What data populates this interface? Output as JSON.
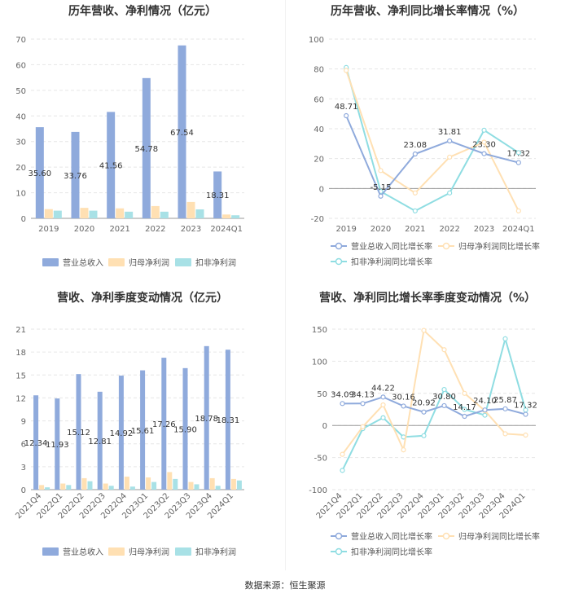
{
  "source": "数据来源：恒生聚源",
  "colors": {
    "revenue": "#8faadc",
    "net_profit": "#ffe0b3",
    "deducted_profit": "#a8e1e6",
    "rev_line": "#8faadc",
    "np_line": "#ffe0b3",
    "dp_line": "#8fdde2",
    "axis_text": "#666666",
    "grid": "#e6e6e6"
  },
  "chart_data": [
    {
      "type": "bar",
      "title": "历年营收、净利情况（亿元）",
      "categories": [
        "2019",
        "2020",
        "2021",
        "2022",
        "2023",
        "2024Q1"
      ],
      "ylim": [
        0,
        70
      ],
      "yticks": [
        0,
        10,
        20,
        30,
        40,
        50,
        60,
        70
      ],
      "series": [
        {
          "name": "营业总收入",
          "values": [
            35.6,
            33.76,
            41.56,
            54.78,
            67.54,
            18.31
          ],
          "labels": [
            "35.60",
            "33.76",
            "41.56",
            "54.78",
            "67.54",
            "18.31"
          ]
        },
        {
          "name": "归母净利润",
          "values": [
            3.6,
            4.1,
            3.9,
            4.8,
            6.4,
            1.5
          ]
        },
        {
          "name": "扣非净利润",
          "values": [
            3.0,
            3.0,
            2.6,
            2.6,
            3.5,
            1.2
          ]
        }
      ],
      "legend": "bottom"
    },
    {
      "type": "line",
      "title": "历年营收、净利同比增长率情况（%）",
      "categories": [
        "2019",
        "2020",
        "2021",
        "2022",
        "2023",
        "2024Q1"
      ],
      "ylim": [
        -20,
        100
      ],
      "yticks": [
        -20,
        0,
        20,
        40,
        60,
        80,
        100
      ],
      "series": [
        {
          "name": "营业总收入同比增长率",
          "values": [
            48.71,
            -5.15,
            23.08,
            31.81,
            23.3,
            17.32
          ],
          "labels": [
            "48.71",
            "-5.15",
            "23.08",
            "31.81",
            "23.30",
            "17.32"
          ]
        },
        {
          "name": "归母净利润同比增长率",
          "values": [
            79,
            12,
            -3,
            21,
            31,
            -15
          ]
        },
        {
          "name": "扣非净利润同比增长率",
          "values": [
            81,
            -2,
            -15,
            -3,
            39,
            24
          ]
        }
      ],
      "legend": "bottom"
    },
    {
      "type": "bar",
      "title": "营收、净利季度变动情况（亿元）",
      "categories": [
        "2021Q4",
        "2022Q1",
        "2022Q2",
        "2022Q3",
        "2022Q4",
        "2023Q1",
        "2023Q2",
        "2023Q3",
        "2023Q4",
        "2024Q1"
      ],
      "ylim": [
        0,
        21
      ],
      "yticks": [
        0,
        3,
        6,
        9,
        12,
        15,
        18,
        21
      ],
      "series": [
        {
          "name": "营业总收入",
          "values": [
            12.34,
            11.93,
            15.12,
            12.81,
            14.92,
            15.61,
            17.26,
            15.9,
            18.78,
            18.31
          ],
          "labels": [
            "12.34",
            "11.93",
            "15.12",
            "12.81",
            "14.92",
            "15.61",
            "17.26",
            "15.90",
            "18.78",
            "18.31"
          ]
        },
        {
          "name": "归母净利润",
          "values": [
            0.6,
            0.8,
            1.5,
            0.8,
            1.7,
            1.6,
            2.3,
            1.0,
            1.5,
            1.4
          ]
        },
        {
          "name": "扣非净利润",
          "values": [
            0.3,
            0.6,
            1.1,
            0.5,
            0.4,
            1.0,
            1.4,
            0.7,
            0.5,
            1.2
          ]
        }
      ],
      "legend": "bottom"
    },
    {
      "type": "line",
      "title": "营收、净利同比增长率季度变动情况（%）",
      "categories": [
        "2021Q4",
        "2022Q1",
        "2022Q2",
        "2022Q3",
        "2022Q4",
        "2023Q1",
        "2023Q2",
        "2023Q3",
        "2023Q4",
        "2024Q1"
      ],
      "ylim": [
        -100,
        150
      ],
      "yticks": [
        -100,
        -50,
        0,
        50,
        100,
        150
      ],
      "series": [
        {
          "name": "营业总收入同比增长率",
          "values": [
            34.09,
            34.13,
            44.22,
            30.16,
            20.92,
            30.8,
            14.17,
            24.1,
            25.87,
            17.32
          ],
          "labels": [
            "34.09",
            "34.13",
            "44.22",
            "30.16",
            "20.92",
            "30.80",
            "14.17",
            "24.10",
            "25.87",
            "17.32"
          ]
        },
        {
          "name": "归母净利润同比增长率",
          "values": [
            -45,
            -2,
            32,
            -38,
            148,
            118,
            50,
            23,
            -13,
            -15
          ]
        },
        {
          "name": "扣非净利润同比增长率",
          "values": [
            -70,
            -5,
            12,
            -18,
            -16,
            56,
            25,
            16,
            135,
            24
          ]
        }
      ],
      "legend": "bottom"
    }
  ]
}
